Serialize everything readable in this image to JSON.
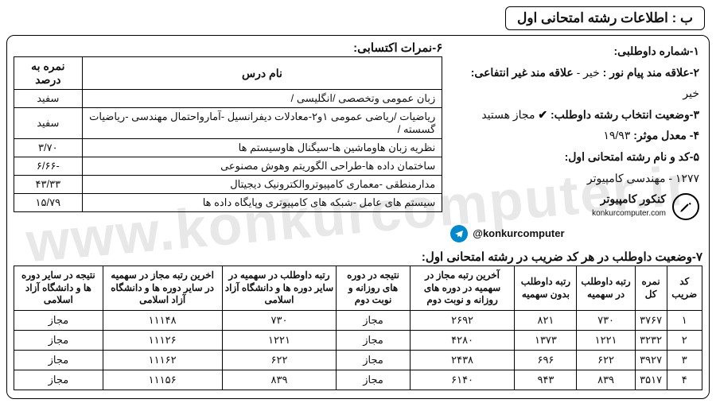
{
  "watermark": "www.konkurcomputer.ir",
  "section_label": "ب : اطلاعات رشته امتحانی اول",
  "info": {
    "l1": "۱-شماره داوطلبی:",
    "l2a": "۲-علاقه مند پیام نور : ",
    "l2a_val": "خیر - ",
    "l2b": "علاقه مند غیر انتفاعی:",
    "l2_val": "خیر",
    "l3": "۳-وضعیت انتخاب رشته داوطلب:",
    "l3_val": " مجاز هستید",
    "l4": "۴- معدل موثر:",
    "l4_val": " ۱۹/۹۳",
    "l5": "۵-کد و نام رشته امتحانی اول:",
    "l5_val": "۱۲۷۷ - مهندسی کامپیوتر",
    "logo_main": "کنکور کامپیوتر",
    "logo_sub": "konkurcomputer.com",
    "tg": "@konkurcomputer"
  },
  "scores_head": "۶-نمرات اکتسابی:",
  "scores": {
    "headers": [
      "نام درس",
      "نمره به درصد"
    ],
    "rows": [
      {
        "name": "زبان عمومی وتخصصی /انگلیسی /",
        "pct": "سفید"
      },
      {
        "name": "ریاضیات /ریاضی عمومی ۱و۲-معادلات دیفرانسیل -آمارواحتمال مهندسی -ریاضیات گسسته /",
        "pct": "سفید"
      },
      {
        "name": "نظریه زبان هاوماشین ها-سیگنال هاوسیستم ها",
        "pct": "۳/۷۰"
      },
      {
        "name": "ساختمان داده ها-طراحی الگوریتم وهوش مصنوعی",
        "pct": "-۶/۶۶"
      },
      {
        "name": "مدارمنطقی -معماری کامپیوتروالکترونیک دیجیتال",
        "pct": "۴۳/۳۳"
      },
      {
        "name": "سیستم های عامل -شبکه های کامپیوتری وپایگاه داده ها",
        "pct": "۱۵/۷۹"
      }
    ]
  },
  "status_head": "۷-وضعیت داوطلب در هر کد ضریب در رشته امتحانی اول:",
  "status": {
    "headers": [
      "کد ضریب",
      "نمره کل",
      "رتبه داوطلب در سهمیه",
      "رتبه داوطلب بدون سهمیه",
      "آخرین رتبه مجاز در سهمیه در دوره های روزانه و نوبت دوم",
      "نتیجه در دوره های روزانه و نوبت دوم",
      "رتبه داوطلب در سهمیه در سایر دوره ها و دانشگاه آزاد اسلامی",
      "اخرین رتبه مجاز در سهمیه در سایر دوره ها و دانشگاه آزاد اسلامی",
      "نتیجه در سایر دوره ها و دانشگاه آزاد اسلامی"
    ],
    "rows": [
      [
        "۱",
        "۳۷۶۷",
        "۷۳۰",
        "۸۲۱",
        "۲۶۹۲",
        "مجاز",
        "۷۳۰",
        "۱۱۱۴۸",
        "مجاز"
      ],
      [
        "۲",
        "۳۲۳۲",
        "۱۲۲۱",
        "۱۳۷۳",
        "۴۲۸۰",
        "مجاز",
        "۱۲۲۱",
        "۱۱۱۲۶",
        "مجاز"
      ],
      [
        "۳",
        "۳۹۲۷",
        "۶۲۲",
        "۶۹۶",
        "۲۴۳۸",
        "مجاز",
        "۶۲۲",
        "۱۱۱۶۲",
        "مجاز"
      ],
      [
        "۴",
        "۳۵۱۷",
        "۸۳۹",
        "۹۴۳",
        "۶۱۴۰",
        "مجاز",
        "۸۳۹",
        "۱۱۱۵۶",
        "مجاز"
      ]
    ]
  }
}
